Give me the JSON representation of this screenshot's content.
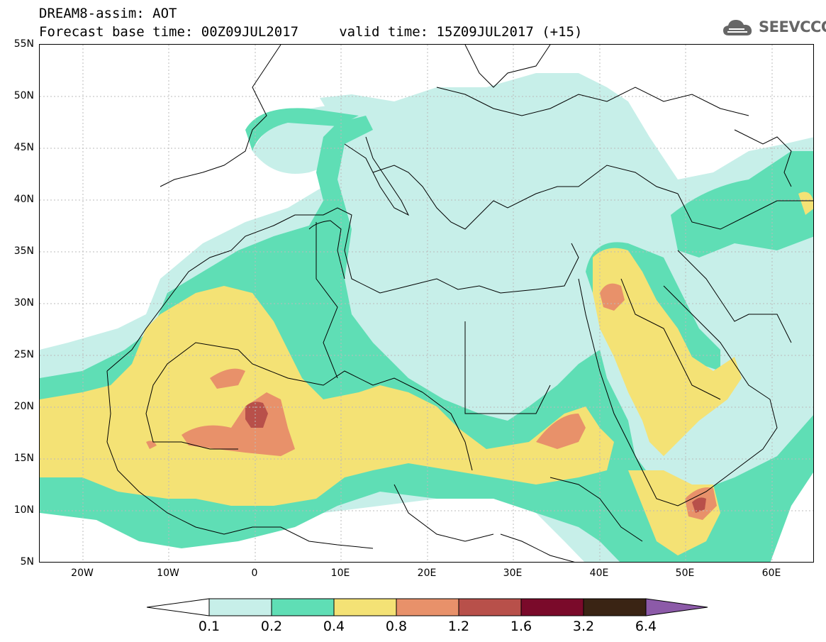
{
  "header": {
    "title_line1": "DREAM8-assim: AOT",
    "title_line2": "Forecast base time: 00Z09JUL2017     valid time: 15Z09JUL2017 (+15)"
  },
  "logo": {
    "text": "SEEVCCC",
    "icon": "cloud-logo-icon"
  },
  "map": {
    "lat_labels": [
      "55N",
      "50N",
      "45N",
      "40N",
      "35N",
      "30N",
      "25N",
      "20N",
      "15N",
      "10N",
      "5N"
    ],
    "lon_labels": [
      "20W",
      "10W",
      "0",
      "10E",
      "20E",
      "30E",
      "40E",
      "50E",
      "60E"
    ],
    "lat_range": [
      5,
      55
    ],
    "lon_range": [
      -25,
      65
    ],
    "colors": {
      "c1": "#c7efe9",
      "c2": "#5fdeb5",
      "c3": "#f4e275",
      "c4": "#e8916a",
      "c5": "#b8504a",
      "c6": "#7a0a2a",
      "c7": "#3a2414",
      "c8": "#8c5aa8",
      "border": "#000000",
      "grid": "#bbbbbb"
    }
  },
  "colorbar": {
    "levels": [
      "0.1",
      "0.2",
      "0.4",
      "0.8",
      "1.2",
      "1.6",
      "3.2",
      "6.4"
    ]
  }
}
